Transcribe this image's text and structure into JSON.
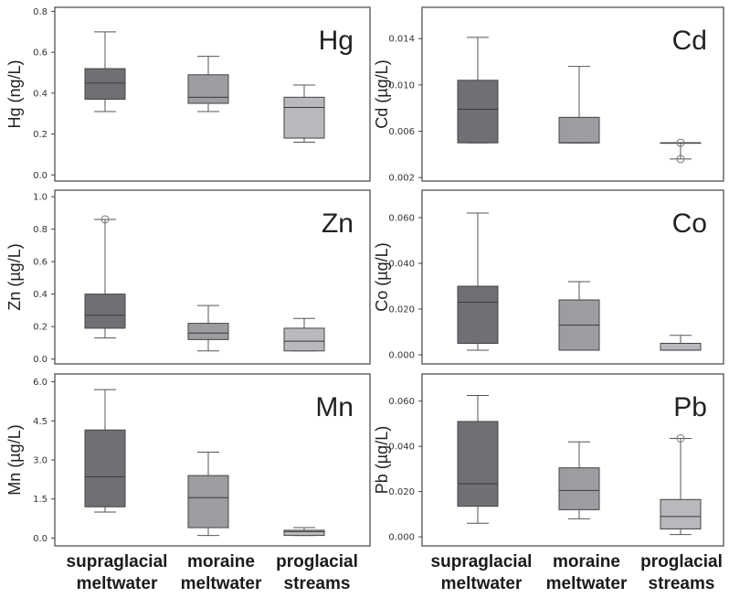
{
  "categories_lines": [
    [
      "supraglacial",
      "meltwater"
    ],
    [
      "moraine",
      "meltwater"
    ],
    [
      "proglacial",
      "streams"
    ]
  ],
  "box_colors": [
    "#707074",
    "#9d9da1",
    "#b9b9bd"
  ],
  "chart_data": [
    {
      "type": "boxplot",
      "title": "Hg",
      "ylabel": "Hg (ng/L)",
      "ylim": [
        -0.03,
        0.82
      ],
      "yticks": [
        0.0,
        0.2,
        0.4,
        0.6,
        0.8
      ],
      "yticklabels": [
        "0.0",
        "0.2",
        "0.4",
        "0.6",
        "0.8"
      ],
      "categories": [
        "supraglacial meltwater",
        "moraine meltwater",
        "proglacial streams"
      ],
      "boxes": [
        {
          "min": 0.31,
          "q1": 0.37,
          "median": 0.45,
          "q3": 0.52,
          "max": 0.7,
          "outliers": []
        },
        {
          "min": 0.31,
          "q1": 0.35,
          "median": 0.38,
          "q3": 0.49,
          "max": 0.58,
          "outliers": []
        },
        {
          "min": 0.16,
          "q1": 0.18,
          "median": 0.33,
          "q3": 0.38,
          "max": 0.44,
          "outliers": []
        }
      ]
    },
    {
      "type": "boxplot",
      "title": "Cd",
      "ylabel": "Cd (µg/L)",
      "ylim": [
        0.0017,
        0.0167
      ],
      "yticks": [
        0.002,
        0.006,
        0.01,
        0.014
      ],
      "yticklabels": [
        "0.002",
        "0.006",
        "0.010",
        "0.014"
      ],
      "categories": [
        "supraglacial meltwater",
        "moraine meltwater",
        "proglacial streams"
      ],
      "boxes": [
        {
          "min": 0.005,
          "q1": 0.005,
          "median": 0.0079,
          "q3": 0.0104,
          "max": 0.0141,
          "outliers": []
        },
        {
          "min": 0.005,
          "q1": 0.005,
          "median": 0.005,
          "q3": 0.0072,
          "max": 0.0116,
          "outliers": []
        },
        {
          "min": 0.0036,
          "q1": 0.005,
          "median": 0.005,
          "q3": 0.005,
          "max": 0.005,
          "outliers": [
            0.005,
            0.0036
          ]
        }
      ]
    },
    {
      "type": "boxplot",
      "title": "Zn",
      "ylabel": "Zn (µg/L)",
      "ylim": [
        -0.03,
        1.04
      ],
      "yticks": [
        0.0,
        0.2,
        0.4,
        0.6,
        0.8,
        1.0
      ],
      "yticklabels": [
        "0.0",
        "0.2",
        "0.4",
        "0.6",
        "0.8",
        "1.0"
      ],
      "categories": [
        "supraglacial meltwater",
        "moraine meltwater",
        "proglacial streams"
      ],
      "boxes": [
        {
          "min": 0.13,
          "q1": 0.19,
          "median": 0.27,
          "q3": 0.4,
          "max": 0.86,
          "outliers": [
            0.86
          ]
        },
        {
          "min": 0.05,
          "q1": 0.12,
          "median": 0.16,
          "q3": 0.22,
          "max": 0.33,
          "outliers": []
        },
        {
          "min": 0.05,
          "q1": 0.05,
          "median": 0.11,
          "q3": 0.19,
          "max": 0.25,
          "outliers": []
        }
      ]
    },
    {
      "type": "boxplot",
      "title": "Co",
      "ylabel": "Co (µg/L)",
      "ylim": [
        -0.004,
        0.072
      ],
      "yticks": [
        0.0,
        0.02,
        0.04,
        0.06
      ],
      "yticklabels": [
        "0.000",
        "0.020",
        "0.040",
        "0.060"
      ],
      "categories": [
        "supraglacial meltwater",
        "moraine meltwater",
        "proglacial streams"
      ],
      "boxes": [
        {
          "min": 0.002,
          "q1": 0.005,
          "median": 0.023,
          "q3": 0.03,
          "max": 0.062,
          "outliers": []
        },
        {
          "min": 0.002,
          "q1": 0.002,
          "median": 0.013,
          "q3": 0.024,
          "max": 0.032,
          "outliers": []
        },
        {
          "min": 0.002,
          "q1": 0.002,
          "median": 0.002,
          "q3": 0.005,
          "max": 0.0085,
          "outliers": []
        }
      ]
    },
    {
      "type": "boxplot",
      "title": "Mn",
      "ylabel": "Mn (µg/L)",
      "ylim": [
        -0.3,
        6.3
      ],
      "yticks": [
        0.0,
        1.5,
        3.0,
        4.5,
        6.0
      ],
      "yticklabels": [
        "0.0",
        "1.5",
        "3.0",
        "4.5",
        "6.0"
      ],
      "categories": [
        "supraglacial meltwater",
        "moraine meltwater",
        "proglacial streams"
      ],
      "boxes": [
        {
          "min": 1.0,
          "q1": 1.2,
          "median": 2.35,
          "q3": 4.15,
          "max": 5.7,
          "outliers": []
        },
        {
          "min": 0.1,
          "q1": 0.4,
          "median": 1.55,
          "q3": 2.4,
          "max": 3.3,
          "outliers": []
        },
        {
          "min": 0.1,
          "q1": 0.1,
          "median": 0.25,
          "q3": 0.3,
          "max": 0.4,
          "outliers": []
        }
      ]
    },
    {
      "type": "boxplot",
      "title": "Pb",
      "ylabel": "Pb (µg/L)",
      "ylim": [
        -0.004,
        0.072
      ],
      "yticks": [
        0.0,
        0.02,
        0.04,
        0.06
      ],
      "yticklabels": [
        "0.000",
        "0.020",
        "0.040",
        "0.060"
      ],
      "categories": [
        "supraglacial meltwater",
        "moraine meltwater",
        "proglacial streams"
      ],
      "boxes": [
        {
          "min": 0.006,
          "q1": 0.0135,
          "median": 0.0235,
          "q3": 0.051,
          "max": 0.0625,
          "outliers": []
        },
        {
          "min": 0.008,
          "q1": 0.012,
          "median": 0.0205,
          "q3": 0.0305,
          "max": 0.042,
          "outliers": []
        },
        {
          "min": 0.001,
          "q1": 0.0035,
          "median": 0.009,
          "q3": 0.0165,
          "max": 0.0435,
          "outliers": [
            0.0435
          ]
        }
      ]
    }
  ]
}
